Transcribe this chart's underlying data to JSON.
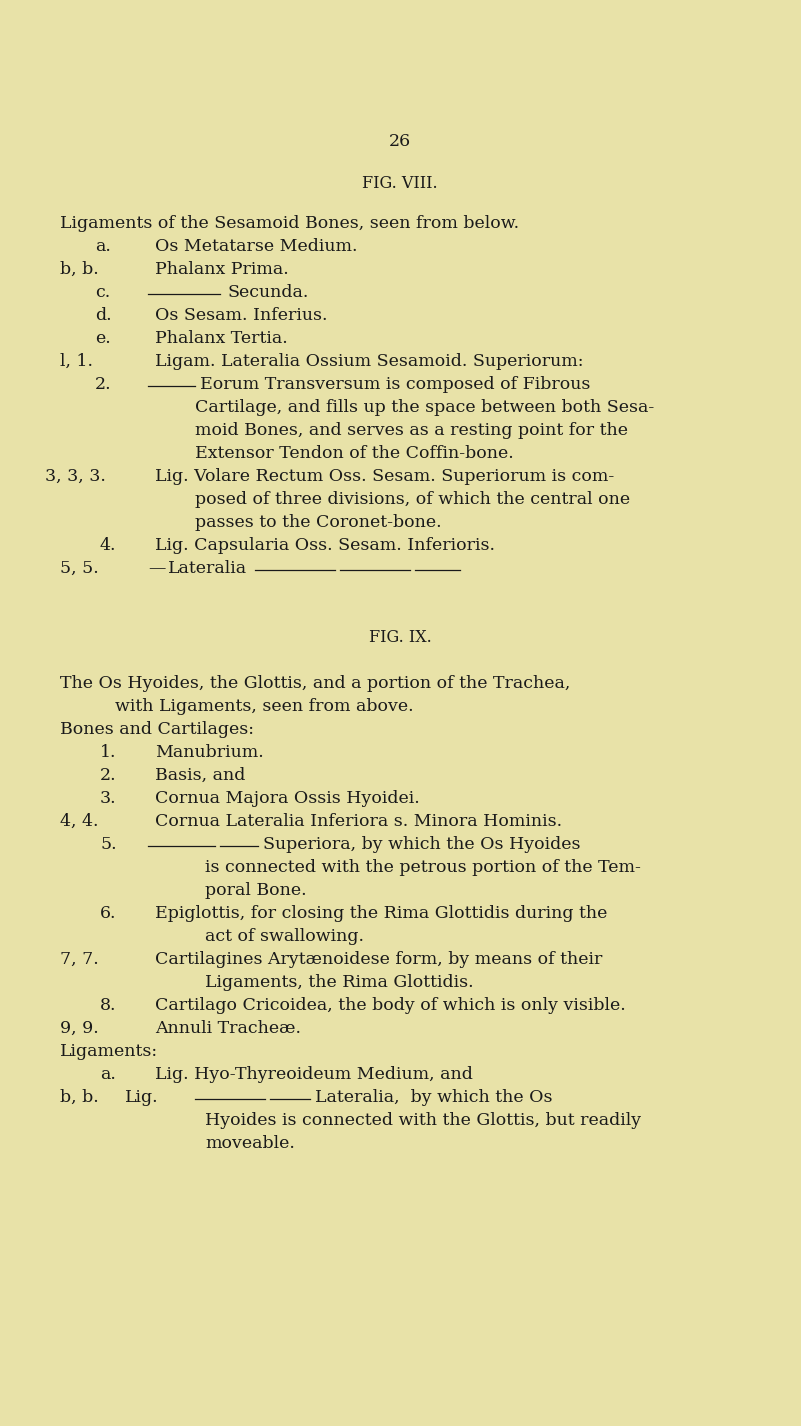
{
  "background_color": "#e8e2a8",
  "text_color": "#1a1a1a",
  "page_number": "26",
  "fig8_header": "FIG. VIII.",
  "fig9_header": "FIG. IX."
}
